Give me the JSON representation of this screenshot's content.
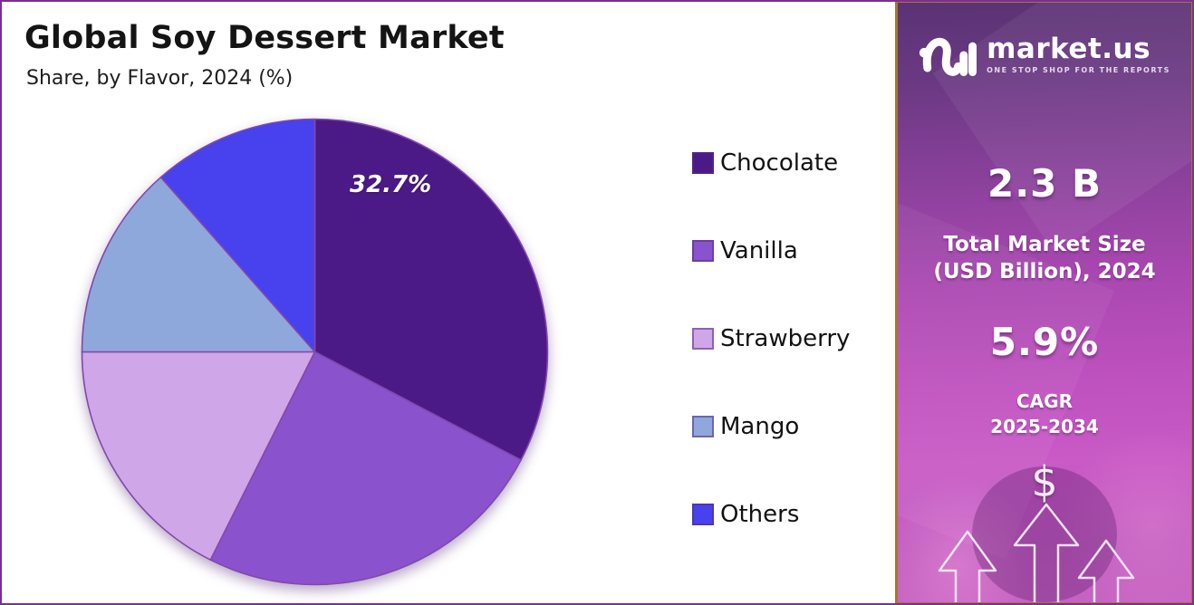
{
  "chart_data": {
    "type": "pie",
    "title": "Global Soy Dessert Market",
    "subtitle": "Share, by Flavor, 2024 (%)",
    "unit": "%",
    "categories": [
      "Chocolate",
      "Vanilla",
      "Strawberry",
      "Mango",
      "Others"
    ],
    "values": [
      32.7,
      24.7,
      17.6,
      13.5,
      11.5
    ],
    "colors": [
      "#4C1A86",
      "#8B52CE",
      "#CFA6E8",
      "#8FA8DC",
      "#4741EE"
    ],
    "slice_label": {
      "slice": "Chocolate",
      "text": "32.7%"
    },
    "start_angle_deg": -90,
    "direction": "clockwise",
    "legend_position": "right"
  },
  "sidebar": {
    "brand": "market.us",
    "tagline": "ONE STOP SHOP FOR THE REPORTS",
    "stats": [
      {
        "value": "2.3 B",
        "label_line1": "Total Market Size",
        "label_line2": "(USD Billion), 2024"
      },
      {
        "value": "5.9%",
        "label_line1": "CAGR",
        "label_line2": "2025-2034"
      }
    ],
    "dollar_symbol": "$",
    "accent_border_color": "#a8762e",
    "frame_border_color": "#7b2e91"
  }
}
